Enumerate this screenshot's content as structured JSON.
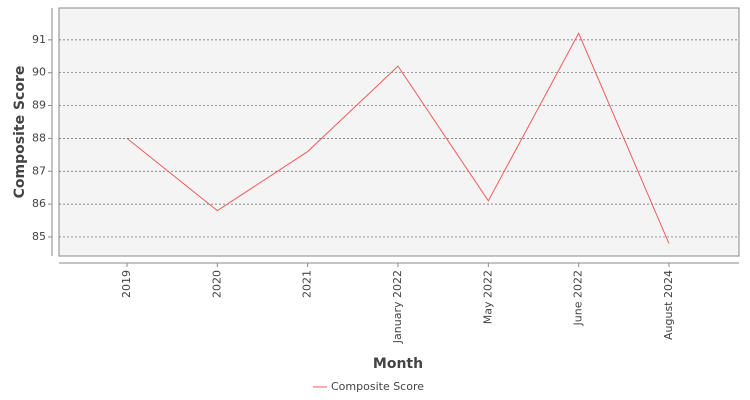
{
  "chart_data": {
    "type": "line",
    "x_label": "Month",
    "y_label": "Composite Score",
    "categories": [
      "2019",
      "2020",
      "2021",
      "January 2022",
      "May 2022",
      "June 2022",
      "August 2024"
    ],
    "series": [
      {
        "name": "Composite Score",
        "color": "#f05a5a",
        "values": [
          88.0,
          85.8,
          87.6,
          90.2,
          86.1,
          91.2,
          84.8
        ]
      }
    ],
    "ylim": [
      84.42,
      91.97
    ],
    "yticks": [
      85,
      86,
      87,
      88,
      89,
      90,
      91
    ],
    "grid": true,
    "legend": "bottom"
  }
}
